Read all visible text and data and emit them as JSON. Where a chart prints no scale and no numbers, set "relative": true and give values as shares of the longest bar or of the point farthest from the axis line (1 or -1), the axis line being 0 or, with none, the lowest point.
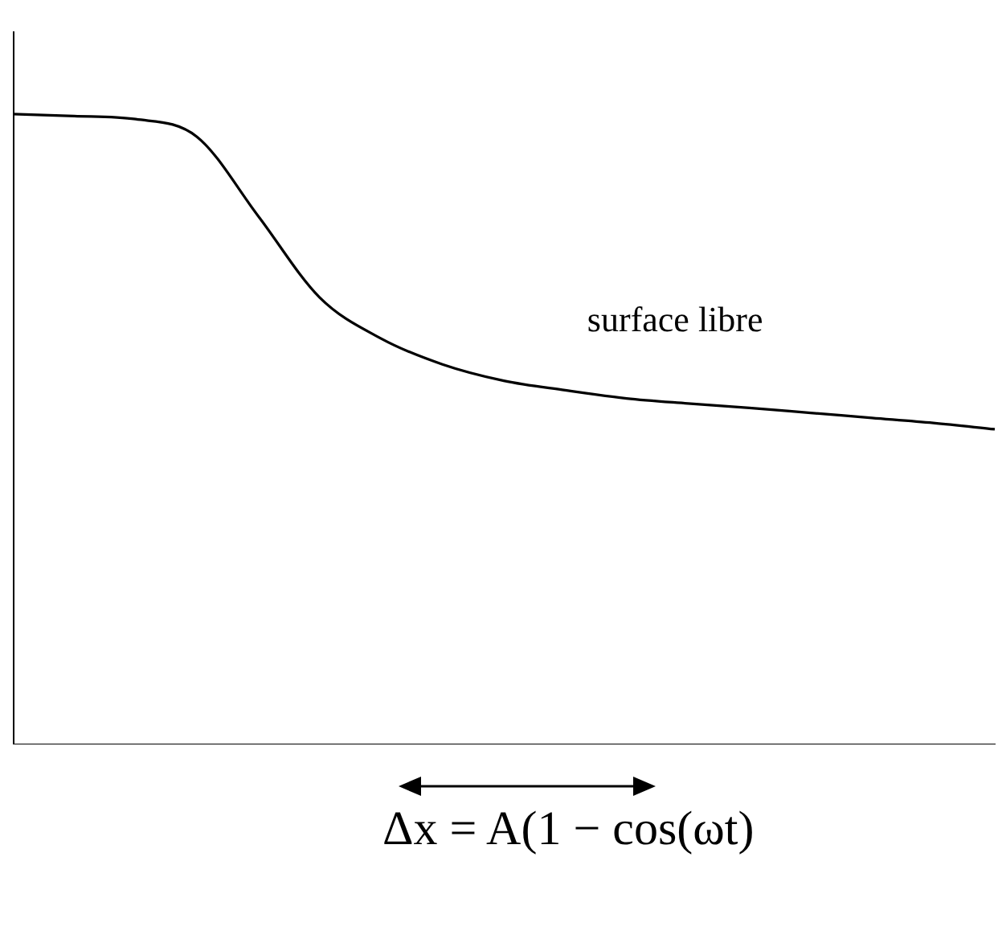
{
  "chart_data": {
    "type": "line",
    "relative": true,
    "categories": [
      null,
      null,
      null,
      null,
      null,
      null,
      null,
      null,
      null,
      null,
      null,
      null,
      null,
      null,
      null,
      null,
      null
    ],
    "series": [
      {
        "color": "#000000",
        "values": [
          1,
          0.997,
          0.992,
          0.964,
          0.838,
          0.709,
          0.644,
          0.603,
          0.577,
          0.562,
          0.549,
          0.541,
          0.534,
          0.526,
          0.518,
          0.51,
          0.5
        ]
      }
    ],
    "xlabel": "Δx = A(1 − cos(ωt)",
    "annotations": [
      "surface libre"
    ],
    "marker": "none",
    "line_style": "solid",
    "grid": false,
    "legend": false
  }
}
